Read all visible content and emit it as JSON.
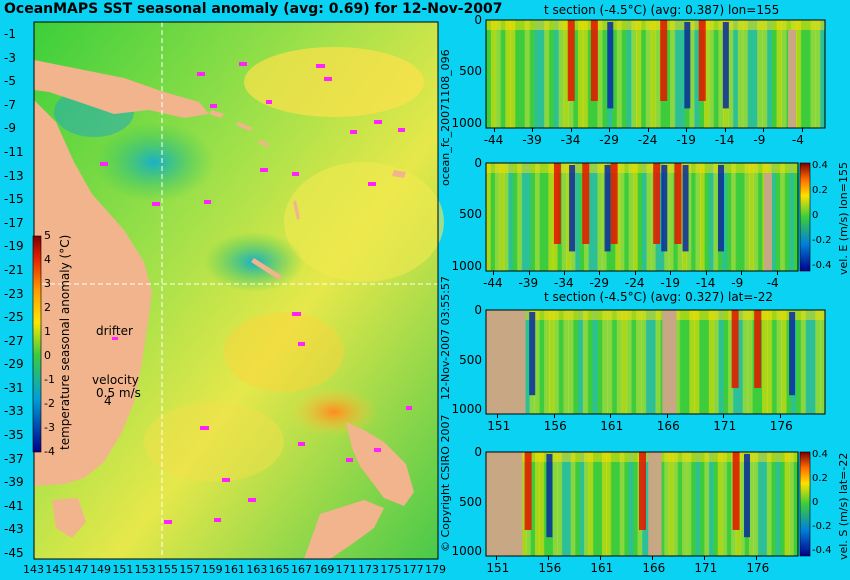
{
  "colors": {
    "page_bg": "#0ad2f2",
    "land": "#f2b48c",
    "panel_land": "#c8a884",
    "guide_line": "#ffffff",
    "drifter": "#ff22ff"
  },
  "map": {
    "title": "OceanMAPS SST seasonal anomaly (avg: 0.69) for 12-Nov-2007",
    "lat_ticks": [
      "-1",
      "-3",
      "-5",
      "-7",
      "-9",
      "-11",
      "-13",
      "-15",
      "-17",
      "-19",
      "-21",
      "-23",
      "-25",
      "-27",
      "-29",
      "-31",
      "-33",
      "-35",
      "-37",
      "-39",
      "-41",
      "-43",
      "-45"
    ],
    "lon_ticks": [
      "143",
      "145",
      "147",
      "149",
      "151",
      "153",
      "155",
      "157",
      "159",
      "161",
      "163",
      "165",
      "167",
      "169",
      "171",
      "173",
      "175",
      "177",
      "179"
    ],
    "colorbar_label": "temperature seasonal anomaly (°C)",
    "colorbar_ticks": [
      "5",
      "4",
      "3",
      "2",
      "1",
      "0",
      "-1",
      "-2",
      "-3",
      "-4"
    ],
    "drifter_label": "drifter",
    "velocity_label": "velocity",
    "velocity_value": "0.5 m/s",
    "velocity_arrow_label": "4",
    "guide_lon": 155,
    "guide_lat": -22
  },
  "side_labels": {
    "run_id": "ocean_fc_20071108_096",
    "timestamp": "12-Nov-2007 03:55:57",
    "copyright": "© Copyright CSIRO 2007"
  },
  "chart_data": [
    {
      "type": "heatmap",
      "title": "t section (-4.5°C) (avg: 0.387) lon=155",
      "x_ticks": [
        "-44",
        "-39",
        "-34",
        "-29",
        "-24",
        "-19",
        "-14",
        "-9",
        "-4"
      ],
      "y_ticks": [
        "0",
        "500",
        "1000"
      ],
      "xlim": [
        -45,
        -1
      ],
      "ylim": [
        0,
        1050
      ],
      "hot_bands_x": [
        -34,
        -31,
        -22,
        -17
      ],
      "cold_bands_x": [
        -29,
        -19,
        -14
      ]
    },
    {
      "type": "heatmap",
      "title": "",
      "x_ticks": [
        "-44",
        "-39",
        "-34",
        "-29",
        "-24",
        "-19",
        "-14",
        "-9",
        "-4"
      ],
      "y_ticks": [
        "0",
        "500",
        "1000"
      ],
      "xlim": [
        -45,
        -1
      ],
      "ylim": [
        0,
        1050
      ],
      "colorbar_label": "vel. E (m/s) lon=155",
      "colorbar_ticks": [
        "0.4",
        "0.2",
        "0",
        "-0.2",
        "-0.4"
      ],
      "hot_bands_x": [
        -35,
        -31,
        -27,
        -21,
        -18
      ],
      "cold_bands_x": [
        -33,
        -28,
        -20,
        -17,
        -12
      ]
    },
    {
      "type": "heatmap",
      "title": "t section (-4.5°C) (avg: 0.327) lat=-22",
      "x_ticks": [
        "151",
        "156",
        "161",
        "166",
        "171",
        "176"
      ],
      "y_ticks": [
        "0",
        "500",
        "1000"
      ],
      "xlim": [
        150,
        180
      ],
      "ylim": [
        0,
        1050
      ],
      "hot_bands_x": [
        172,
        174
      ],
      "cold_bands_x": [
        154,
        177
      ]
    },
    {
      "type": "heatmap",
      "title": "",
      "x_ticks": [
        "151",
        "156",
        "161",
        "166",
        "171",
        "176"
      ],
      "y_ticks": [
        "0",
        "500",
        "1000"
      ],
      "xlim": [
        150,
        180
      ],
      "ylim": [
        0,
        1050
      ],
      "colorbar_label": "vel. S (m/s) lat=-22",
      "colorbar_ticks": [
        "0.4",
        "0.2",
        "0",
        "-0.2",
        "-0.4"
      ],
      "hot_bands_x": [
        154,
        165,
        174
      ],
      "cold_bands_x": [
        156,
        166,
        175
      ]
    }
  ]
}
